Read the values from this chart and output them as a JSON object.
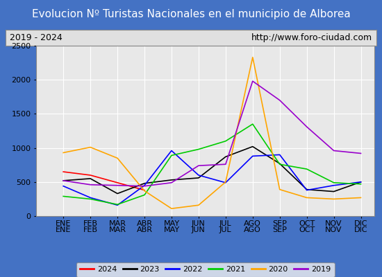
{
  "title": "Evolucion Nº Turistas Nacionales en el municipio de Alborea",
  "subtitle_left": "2019 - 2024",
  "subtitle_right": "http://www.foro-ciudad.com",
  "months": [
    "ENE",
    "FEB",
    "MAR",
    "ABR",
    "MAY",
    "JUN",
    "JUL",
    "AGO",
    "SEP",
    "OCT",
    "NOV",
    "DIC"
  ],
  "series": {
    "2024": [
      650,
      600,
      490,
      380,
      null,
      null,
      null,
      null,
      null,
      null,
      null,
      null
    ],
    "2023": [
      520,
      550,
      330,
      480,
      530,
      560,
      870,
      1020,
      770,
      390,
      360,
      500
    ],
    "2022": [
      440,
      270,
      160,
      450,
      960,
      600,
      490,
      880,
      900,
      380,
      450,
      500
    ],
    "2021": [
      290,
      250,
      170,
      310,
      890,
      980,
      1100,
      1350,
      760,
      690,
      490,
      470
    ],
    "2020": [
      930,
      1010,
      850,
      370,
      110,
      160,
      500,
      2330,
      390,
      270,
      250,
      270
    ],
    "2019": [
      520,
      460,
      450,
      440,
      490,
      740,
      760,
      1980,
      1700,
      1310,
      960,
      920
    ]
  },
  "colors": {
    "2024": "#ff0000",
    "2023": "#000000",
    "2022": "#0000ff",
    "2021": "#00cc00",
    "2020": "#ffa500",
    "2019": "#9900cc"
  },
  "ylim": [
    0,
    2500
  ],
  "yticks": [
    0,
    500,
    1000,
    1500,
    2000,
    2500
  ],
  "title_bg_color": "#4472c4",
  "title_text_color": "#ffffff",
  "plot_bg_color": "#e8e8e8",
  "chart_area_bg": "#d8d8d8",
  "grid_color": "#ffffff",
  "border_color": "#4472c4",
  "title_fontsize": 11,
  "subtitle_fontsize": 9,
  "tick_fontsize": 8,
  "legend_order": [
    "2024",
    "2023",
    "2022",
    "2021",
    "2020",
    "2019"
  ]
}
